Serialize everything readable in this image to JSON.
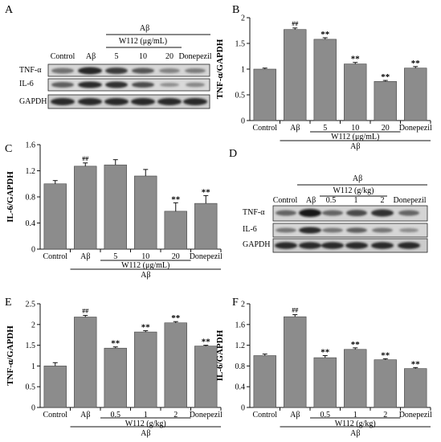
{
  "panels": {
    "A": {
      "letter": "A",
      "group": "Aβ",
      "treatment": "W112  (μg/mL)",
      "lanes": [
        "Control",
        "Aβ",
        "5",
        "10",
        "20",
        "Donepezil"
      ],
      "rows": [
        "TNF-α",
        "IL-6",
        "GAPDH"
      ]
    },
    "D": {
      "letter": "D",
      "group": "Aβ",
      "treatment": "W112  (g/kg)",
      "lanes": [
        "Control",
        "Aβ",
        "0.5",
        "1",
        "2",
        "Donepezil"
      ],
      "rows": [
        "TNF-α",
        "IL-6",
        "GAPDH"
      ]
    }
  },
  "chart_data": [
    {
      "id": "B",
      "letter": "B",
      "type": "bar",
      "categories": [
        "Control",
        "Aβ",
        "5",
        "10",
        "20",
        "Donepezil"
      ],
      "values": [
        1.0,
        1.77,
        1.58,
        1.1,
        0.76,
        1.02
      ],
      "errors": [
        0.02,
        0.03,
        0.03,
        0.03,
        0.02,
        0.03
      ],
      "marks": [
        "",
        "##",
        "**",
        "**",
        "**",
        "**"
      ],
      "ylabel": "TNF-α/GAPDH",
      "yticks": [
        "0",
        "0.5",
        "1",
        "1.5",
        "2"
      ],
      "ylim": [
        0,
        2
      ],
      "treatment": "W112  (μg/mL)",
      "group": "Aβ"
    },
    {
      "id": "C",
      "letter": "C",
      "type": "bar",
      "categories": [
        "Control",
        "Aβ",
        "5",
        "10",
        "20",
        "Donepezil"
      ],
      "values": [
        1.0,
        1.27,
        1.29,
        1.12,
        0.58,
        0.7
      ],
      "errors": [
        0.05,
        0.05,
        0.08,
        0.1,
        0.13,
        0.12
      ],
      "marks": [
        "",
        "##",
        "",
        "",
        "**",
        "**"
      ],
      "ylabel": "IL-6/GAPDH",
      "yticks": [
        "0",
        "0.4",
        "0.8",
        "1.2",
        "1.6"
      ],
      "ylim": [
        0,
        1.6
      ],
      "treatment": "W112  (μg/mL)",
      "group": "Aβ"
    },
    {
      "id": "E",
      "letter": "E",
      "type": "bar",
      "categories": [
        "Control",
        "Aβ",
        "0.5",
        "1",
        "2",
        "Donepezil"
      ],
      "values": [
        1.0,
        2.18,
        1.43,
        1.82,
        2.04,
        1.48
      ],
      "errors": [
        0.08,
        0.04,
        0.03,
        0.03,
        0.03,
        0.02
      ],
      "marks": [
        "",
        "##",
        "**",
        "**",
        "**",
        "**"
      ],
      "ylabel": "TNF-α/GAPDH",
      "yticks": [
        "0",
        "0.5",
        "1",
        "1.5",
        "2",
        "2.5"
      ],
      "ylim": [
        0,
        2.5
      ],
      "treatment": "W112  (g/kg)",
      "group": "Aβ"
    },
    {
      "id": "F",
      "letter": "F",
      "type": "bar",
      "categories": [
        "Control",
        "Aβ",
        "0.5",
        "1",
        "2",
        "Donepezil"
      ],
      "values": [
        1.0,
        1.75,
        0.96,
        1.12,
        0.92,
        0.75
      ],
      "errors": [
        0.03,
        0.04,
        0.04,
        0.03,
        0.02,
        0.02
      ],
      "marks": [
        "",
        "##",
        "**",
        "**",
        "**",
        "**"
      ],
      "ylabel": "IL-6/GAPDH",
      "yticks": [
        "0",
        "0.4",
        "0.8",
        "1.2",
        "1.6",
        "2"
      ],
      "ylim": [
        0,
        2
      ],
      "treatment": "W112  (g/kg)",
      "group": "Aβ"
    }
  ],
  "colors": {
    "bar": "#8c8c8c",
    "axis": "#111111",
    "band_dark": "#1e1e1e"
  }
}
